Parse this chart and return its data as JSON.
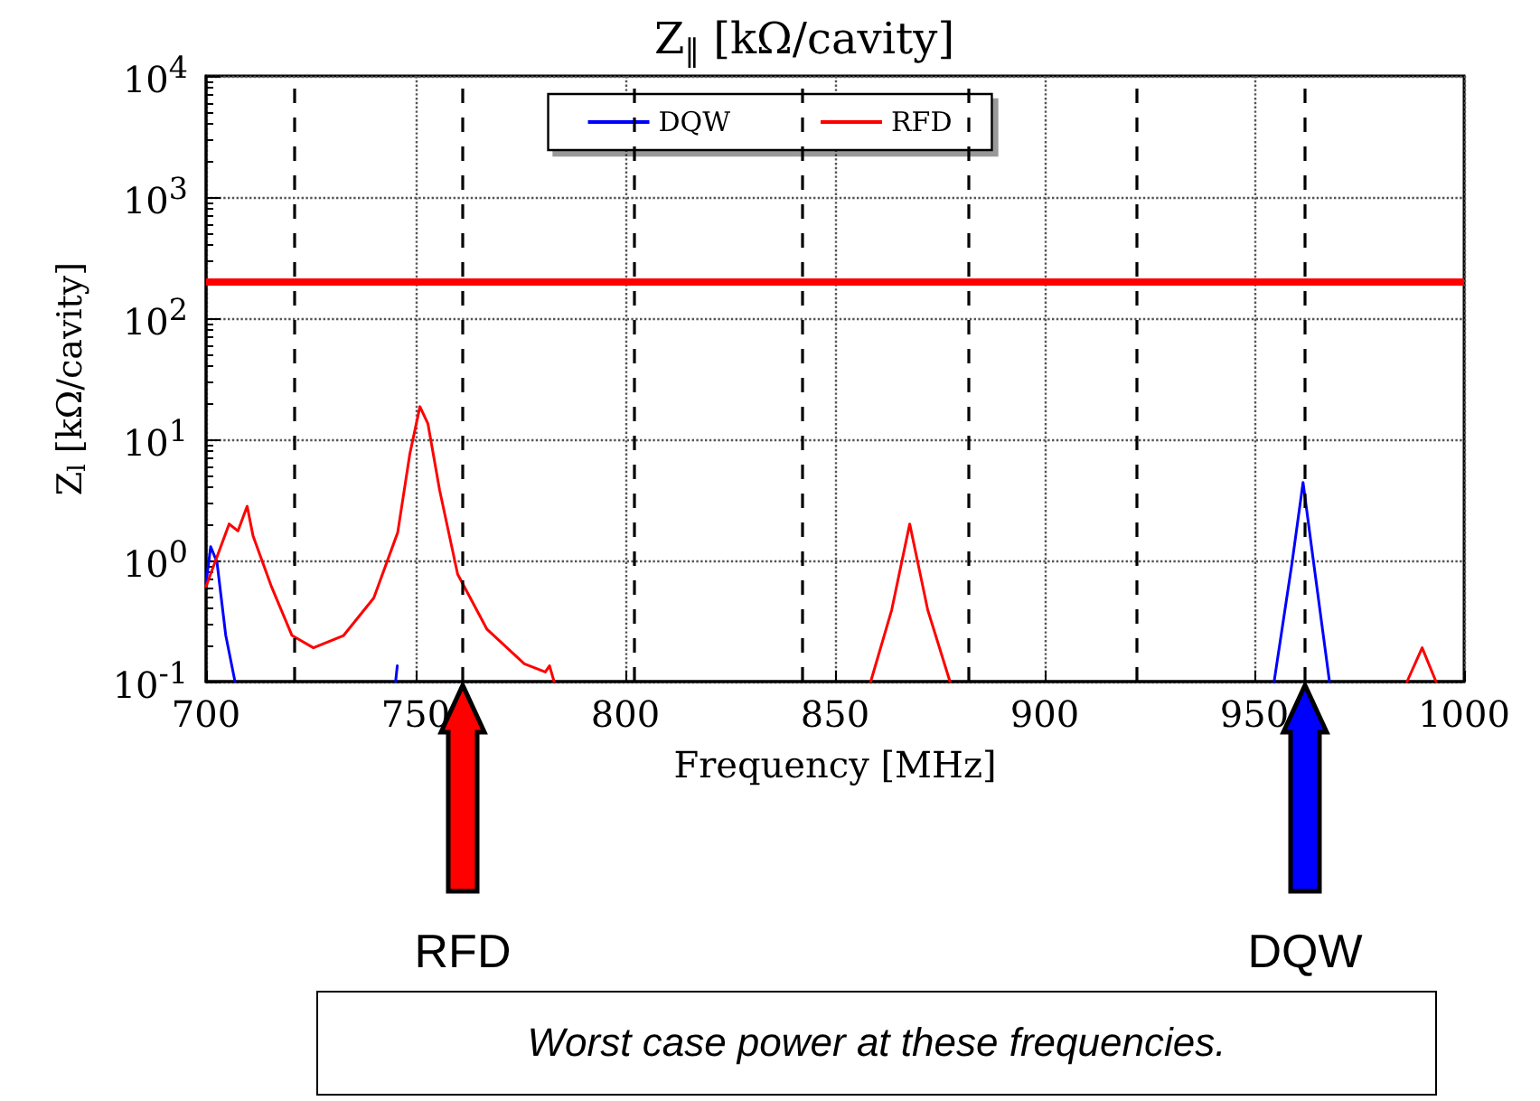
{
  "chart_data": {
    "type": "line",
    "title": "Z$_{‖}$ [kΩ/cavity]",
    "xlabel": "Frequency [MHz]",
    "ylabel": "Z$_{l}$ [kΩ/cavity]",
    "log": "y",
    "grid": true,
    "legend": "top",
    "marker": "none",
    "line_style": "solid",
    "xlim": [
      700,
      1000
    ],
    "xticks": [
      700,
      750,
      800,
      850,
      900,
      950,
      1000
    ],
    "ylim": [
      0.1,
      10000
    ],
    "yticks": [
      {
        "value": 0.1,
        "label": "10$^{-1}$"
      },
      {
        "value": 1,
        "label": "10$^{0}$"
      },
      {
        "value": 10,
        "label": "10$^{1}$"
      },
      {
        "value": 100,
        "label": "10$^{2}$"
      },
      {
        "value": 1000,
        "label": "10$^{3}$"
      },
      {
        "value": 10000,
        "label": "10$^{4}$"
      }
    ],
    "series": [
      {
        "name": "DQW",
        "color": "#0000ff",
        "x": [
          700,
          701.1,
          702.6,
          704.7,
          706.9,
          707,
          745.2,
          745.6,
          745.7,
          954.7,
          959,
          961.6,
          964.1,
          967.9
        ],
        "values": [
          0.65,
          1.3,
          0.97,
          0.24,
          0.1,
          null,
          0.1,
          0.135,
          null,
          0.1,
          0.97,
          4.4,
          0.97,
          0.1
        ]
      },
      {
        "name": "RFD",
        "color": "#ff0000",
        "x": [
          700,
          705.5,
          707.6,
          709.8,
          711.2,
          715.5,
          720.5,
          725.6,
          732.8,
          740,
          745.7,
          748.6,
          751,
          752.9,
          755.7,
          760,
          767,
          775.9,
          780.9,
          781.9,
          783,
          784,
          858.5,
          863.5,
          867.8,
          872.1,
          877.4,
          878,
          986.4,
          990,
          993.3
        ],
        "values": [
          0.61,
          2.0,
          1.75,
          2.8,
          1.6,
          0.62,
          0.24,
          0.19,
          0.24,
          0.49,
          1.7,
          7.6,
          18.6,
          13.5,
          3.8,
          0.77,
          0.27,
          0.14,
          0.12,
          0.135,
          0.1,
          null,
          0.1,
          0.39,
          2.0,
          0.39,
          0.1,
          null,
          0.1,
          0.19,
          0.1
        ]
      }
    ],
    "ref_lines": [
      {
        "axis": "y",
        "value": 200,
        "color": "#ff0000",
        "line_style": "solid"
      },
      {
        "axis": "x",
        "value": 721,
        "color": "#000000",
        "line_style": "dashed"
      },
      {
        "axis": "x",
        "value": 761,
        "color": "#000000",
        "line_style": "dashed"
      },
      {
        "axis": "x",
        "value": 802,
        "color": "#000000",
        "line_style": "dashed"
      },
      {
        "axis": "x",
        "value": 842,
        "color": "#000000",
        "line_style": "dashed"
      },
      {
        "axis": "x",
        "value": 882,
        "color": "#000000",
        "line_style": "dashed"
      },
      {
        "axis": "x",
        "value": 922,
        "color": "#000000",
        "line_style": "dashed"
      },
      {
        "axis": "x",
        "value": 962,
        "color": "#000000",
        "line_style": "dashed"
      }
    ],
    "annotations": [
      "RFD",
      "DQW",
      "Worst case power at these frequencies."
    ]
  }
}
